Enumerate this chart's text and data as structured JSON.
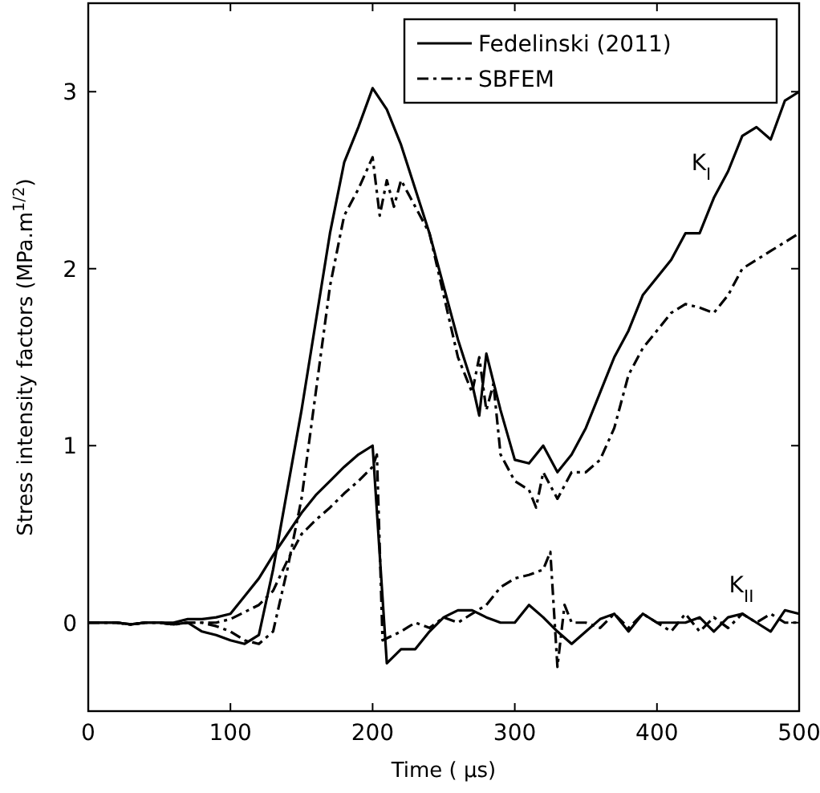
{
  "chart_data": {
    "type": "line",
    "xlabel": "Time ( μs)",
    "ylabel": "Stress intensity factors (MPa.m$^{1/2}$)",
    "xlim": [
      0,
      500
    ],
    "ylim": [
      -0.5,
      3.5
    ],
    "xticks": [
      0,
      100,
      200,
      300,
      400,
      500
    ],
    "yticks": [
      0,
      1,
      2,
      3
    ],
    "grid": false,
    "legend": "top right",
    "marker": "none",
    "series": [
      {
        "name": "Fedelinski (2011)",
        "color": "#000000",
        "line_style": "solid",
        "x": [
          0,
          10,
          20,
          30,
          40,
          50,
          60,
          70,
          80,
          90,
          100,
          110,
          120,
          130,
          150,
          170,
          180,
          190,
          200,
          210,
          220,
          230,
          240,
          250,
          260,
          270,
          275,
          280,
          290,
          300,
          310,
          320,
          330,
          340,
          350,
          360,
          370,
          380,
          390,
          400,
          410,
          420,
          430,
          440,
          450,
          460,
          470,
          480,
          490,
          500
        ],
        "values": [
          0,
          0,
          0,
          -0.01,
          0,
          0,
          -0.01,
          0,
          -0.05,
          -0.07,
          -0.1,
          -0.12,
          -0.07,
          0.3,
          1.2,
          2.2,
          2.6,
          2.8,
          3.02,
          2.9,
          2.7,
          2.45,
          2.2,
          1.9,
          1.6,
          1.35,
          1.17,
          1.52,
          1.2,
          0.92,
          0.9,
          1.0,
          0.85,
          0.95,
          1.1,
          1.3,
          1.5,
          1.65,
          1.85,
          1.95,
          2.05,
          2.2,
          2.2,
          2.4,
          2.55,
          2.75,
          2.8,
          2.73,
          2.95,
          3.0
        ]
      },
      {
        "name": "SBFEM",
        "color": "#000000",
        "line_style": "dashed",
        "x": [
          0,
          10,
          20,
          30,
          40,
          50,
          60,
          70,
          80,
          90,
          100,
          110,
          120,
          130,
          140,
          150,
          160,
          170,
          180,
          190,
          200,
          205,
          210,
          215,
          220,
          230,
          240,
          250,
          260,
          270,
          275,
          280,
          285,
          290,
          300,
          310,
          315,
          320,
          330,
          340,
          350,
          360,
          370,
          380,
          390,
          400,
          410,
          420,
          430,
          440,
          450,
          460,
          470,
          480,
          490,
          500
        ],
        "values": [
          0,
          0,
          0,
          -0.01,
          0,
          0,
          -0.01,
          0,
          0,
          -0.02,
          -0.05,
          -0.1,
          -0.12,
          -0.05,
          0.3,
          0.7,
          1.3,
          1.9,
          2.3,
          2.45,
          2.63,
          2.3,
          2.5,
          2.35,
          2.5,
          2.35,
          2.2,
          1.85,
          1.5,
          1.3,
          1.5,
          1.2,
          1.35,
          0.95,
          0.8,
          0.75,
          0.65,
          0.85,
          0.7,
          0.85,
          0.85,
          0.92,
          1.1,
          1.4,
          1.55,
          1.65,
          1.75,
          1.8,
          1.78,
          1.75,
          1.85,
          2.0,
          2.05,
          2.1,
          2.15,
          2.2
        ]
      },
      {
        "color": "#000000",
        "line_style": "solid",
        "x": [
          0,
          10,
          20,
          30,
          40,
          50,
          60,
          70,
          80,
          90,
          100,
          110,
          120,
          130,
          140,
          150,
          160,
          170,
          180,
          190,
          200,
          210,
          220,
          230,
          240,
          250,
          260,
          270,
          280,
          290,
          300,
          310,
          320,
          330,
          340,
          350,
          360,
          370,
          380,
          390,
          400,
          410,
          420,
          430,
          440,
          450,
          460,
          470,
          480,
          490,
          500
        ],
        "values": [
          0,
          0,
          0,
          -0.01,
          0,
          0,
          0,
          0.02,
          0.02,
          0.03,
          0.05,
          0.15,
          0.25,
          0.38,
          0.5,
          0.62,
          0.72,
          0.8,
          0.88,
          0.95,
          1.0,
          -0.23,
          -0.15,
          -0.15,
          -0.05,
          0.03,
          0.07,
          0.07,
          0.03,
          0.0,
          0.0,
          0.1,
          0.03,
          -0.05,
          -0.12,
          -0.05,
          0.02,
          0.05,
          -0.05,
          0.05,
          0.0,
          0.0,
          0.0,
          0.03,
          -0.05,
          0.03,
          0.05,
          0.0,
          -0.05,
          0.07,
          0.05
        ]
      },
      {
        "color": "#000000",
        "line_style": "dashed",
        "x": [
          0,
          10,
          20,
          30,
          40,
          50,
          60,
          70,
          80,
          90,
          100,
          110,
          120,
          130,
          140,
          150,
          160,
          170,
          180,
          190,
          200,
          203,
          207,
          220,
          230,
          240,
          250,
          260,
          270,
          280,
          290,
          300,
          310,
          320,
          325,
          330,
          335,
          340,
          350,
          360,
          370,
          380,
          390,
          400,
          410,
          420,
          430,
          440,
          450,
          460,
          470,
          480,
          490,
          500
        ],
        "values": [
          0,
          0,
          0,
          -0.01,
          0,
          0,
          -0.01,
          0,
          0,
          0.0,
          0.02,
          0.06,
          0.1,
          0.18,
          0.35,
          0.5,
          0.58,
          0.65,
          0.73,
          0.8,
          0.88,
          0.95,
          -0.1,
          -0.05,
          0.0,
          -0.03,
          0.03,
          0.0,
          0.05,
          0.1,
          0.2,
          0.25,
          0.27,
          0.3,
          0.4,
          -0.25,
          0.1,
          0.0,
          0.0,
          -0.03,
          0.05,
          -0.03,
          0.05,
          0.0,
          -0.05,
          0.05,
          -0.05,
          0.03,
          -0.03,
          0.05,
          0.0,
          0.05,
          0.0,
          0.0
        ]
      }
    ],
    "annotations": [
      "K$_{I}$",
      "K$_{II}$"
    ]
  }
}
